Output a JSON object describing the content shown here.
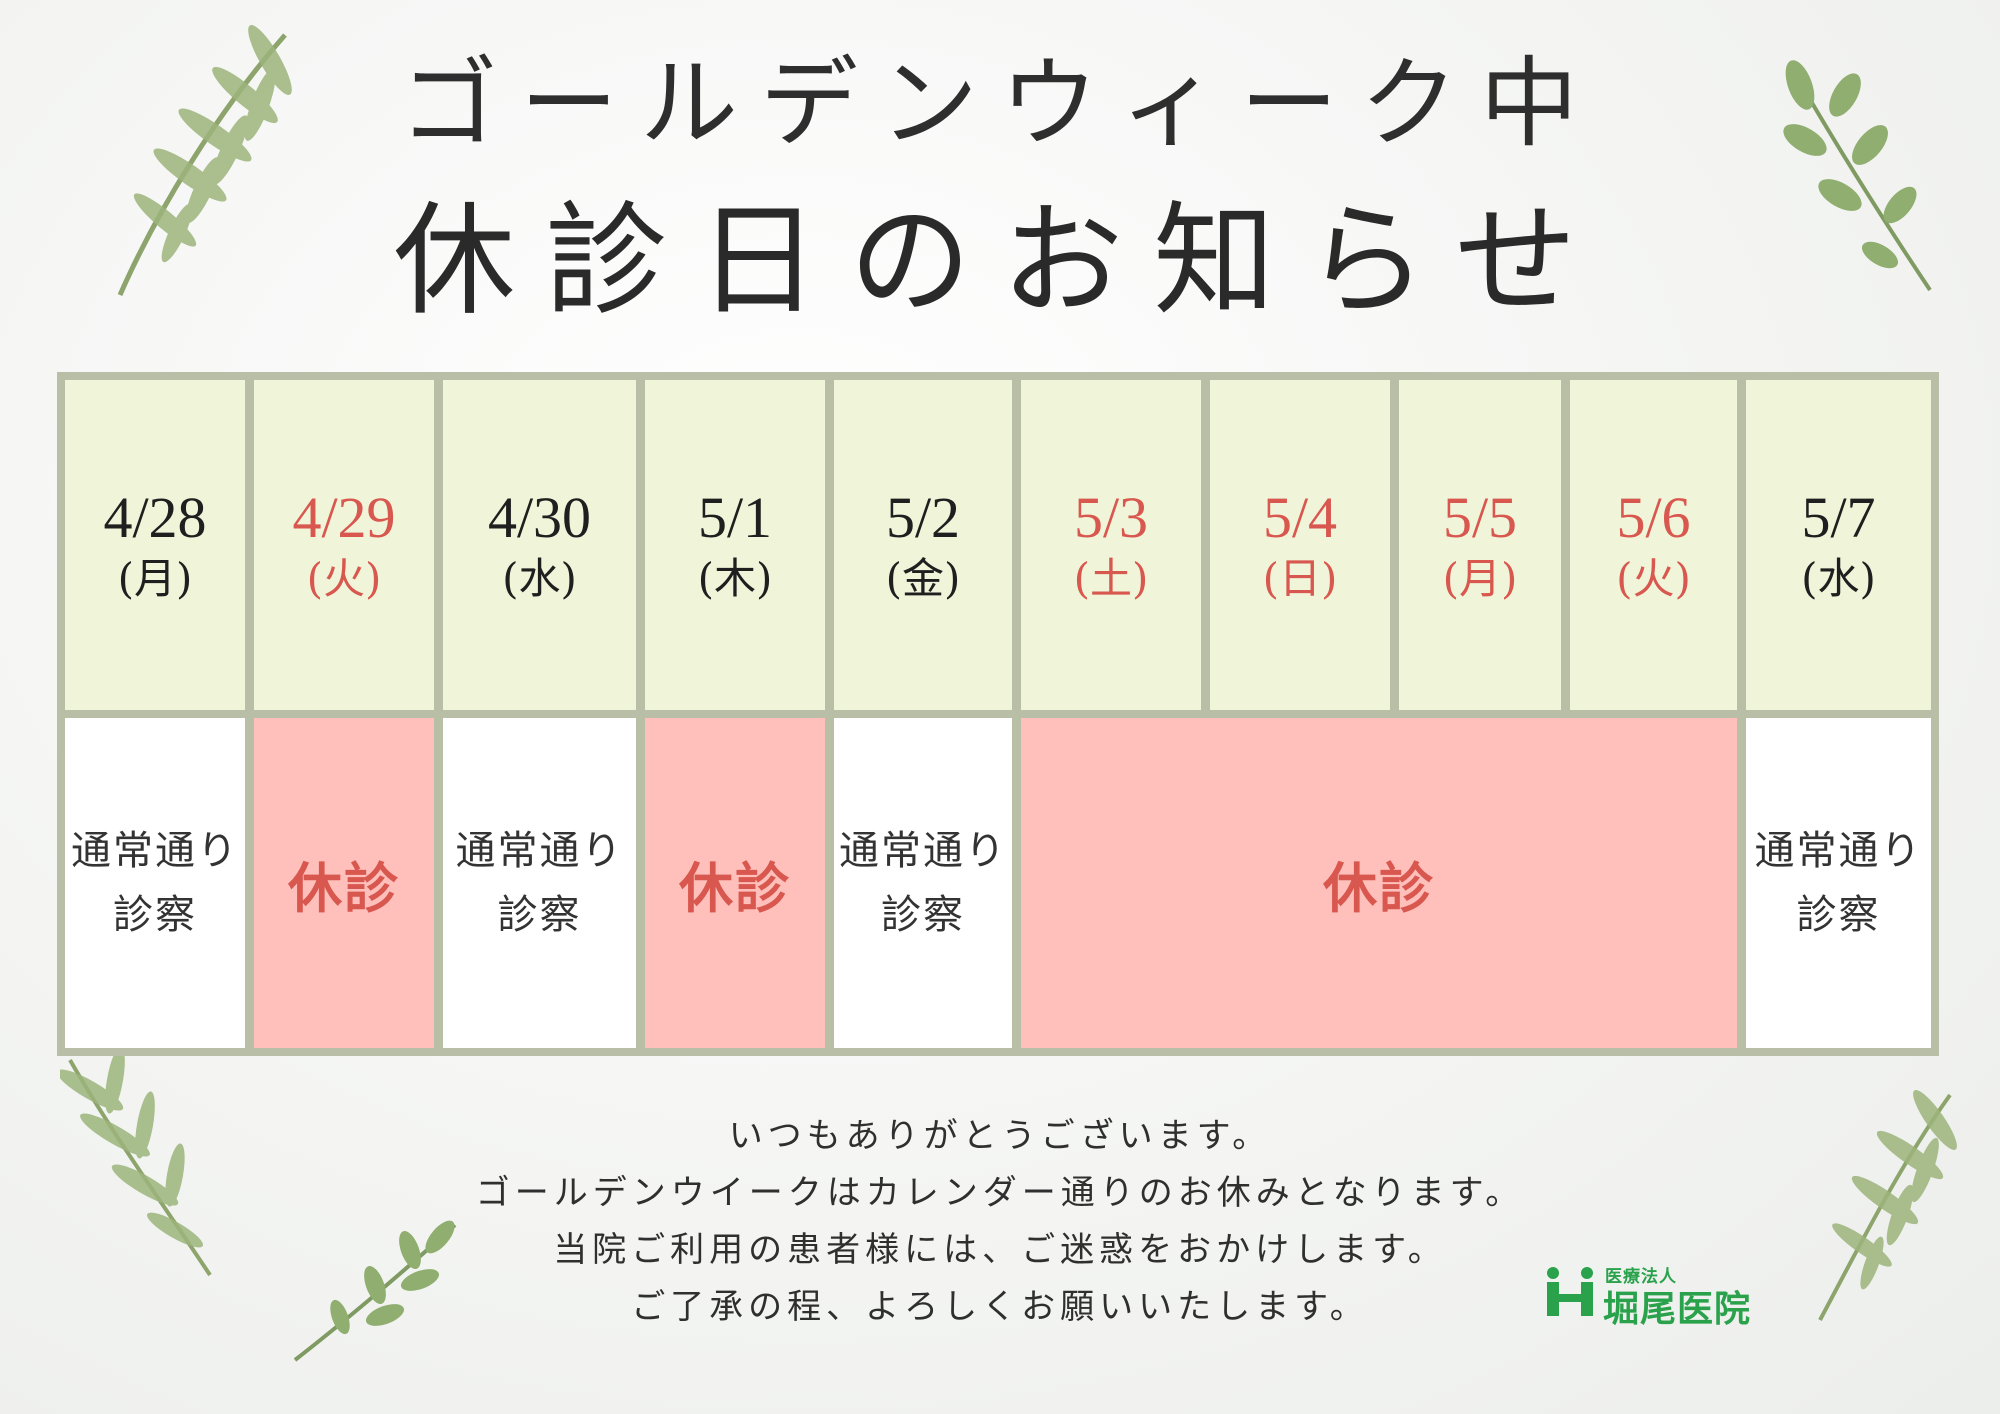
{
  "title": {
    "line1": "ゴールデンウィーク中",
    "line2": "休診日のお知らせ"
  },
  "schedule": {
    "days": [
      {
        "date": "4/28",
        "dow": "(月)",
        "holiday": false
      },
      {
        "date": "4/29",
        "dow": "(火)",
        "holiday": true
      },
      {
        "date": "4/30",
        "dow": "(水)",
        "holiday": false
      },
      {
        "date": "5/1",
        "dow": "(木)",
        "holiday": false
      },
      {
        "date": "5/2",
        "dow": "(金)",
        "holiday": false
      },
      {
        "date": "5/3",
        "dow": "(土)",
        "holiday": true
      },
      {
        "date": "5/4",
        "dow": "(日)",
        "holiday": true
      },
      {
        "date": "5/5",
        "dow": "(月)",
        "holiday": true
      },
      {
        "date": "5/6",
        "dow": "(火)",
        "holiday": true
      },
      {
        "date": "5/7",
        "dow": "(水)",
        "holiday": false
      }
    ],
    "status": [
      {
        "line1": "通常通り",
        "line2": "診察",
        "closed": false
      },
      {
        "text": "休診",
        "closed": true
      },
      {
        "line1": "通常通り",
        "line2": "診察",
        "closed": false
      },
      {
        "text": "休診",
        "closed": true
      },
      {
        "line1": "通常通り",
        "line2": "診察",
        "closed": false
      },
      {
        "text": "休診",
        "closed": true
      },
      {
        "line1": "通常通り",
        "line2": "診察",
        "closed": false
      }
    ]
  },
  "message": [
    "いつもありがとうございます。",
    "ゴールデンウイークはカレンダー通りのお休みとなります。",
    "当院ご利用の患者様には、ご迷惑をおかけします。",
    "ご了承の程、よろしくお願いいたします。"
  ],
  "logo": {
    "subtitle": "医療法人",
    "name": "堀尾医院",
    "icon": "clinic-logo-icon"
  },
  "colors": {
    "holiday_red": "#d8574f",
    "header_bg": "#f0f4d8",
    "closed_bg": "#ffbfba",
    "grid": "#b9bfa6",
    "brand_green": "#2aa24c",
    "leaf_green": "#8cab6e"
  }
}
